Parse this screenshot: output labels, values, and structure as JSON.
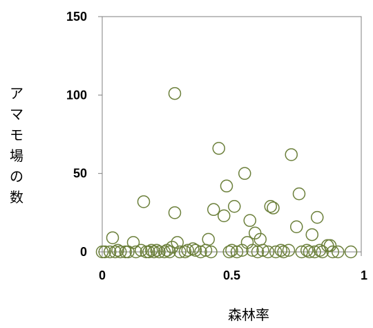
{
  "chart_data": {
    "type": "scatter",
    "title": "",
    "xlabel": "森林率",
    "ylabel": "アマモ場の数",
    "xlim": [
      0,
      1
    ],
    "ylim": [
      0,
      150
    ],
    "xticks": [
      0,
      0.5,
      1
    ],
    "xtick_labels": [
      "0",
      "0.5",
      "1"
    ],
    "yticks": [
      0,
      50,
      100,
      150
    ],
    "ytick_labels": [
      "0",
      "50",
      "100",
      "150"
    ],
    "grid": false,
    "legend": "none",
    "marker": {
      "shape": "open-circle",
      "color": "#6b7f3a"
    },
    "points": [
      {
        "x": 0.0,
        "y": 0
      },
      {
        "x": 0.01,
        "y": 0
      },
      {
        "x": 0.03,
        "y": 0
      },
      {
        "x": 0.04,
        "y": 9
      },
      {
        "x": 0.05,
        "y": 0
      },
      {
        "x": 0.06,
        "y": 1
      },
      {
        "x": 0.07,
        "y": 0
      },
      {
        "x": 0.09,
        "y": 0
      },
      {
        "x": 0.1,
        "y": 0
      },
      {
        "x": 0.12,
        "y": 6
      },
      {
        "x": 0.13,
        "y": 0
      },
      {
        "x": 0.15,
        "y": 1
      },
      {
        "x": 0.16,
        "y": 32
      },
      {
        "x": 0.17,
        "y": 0
      },
      {
        "x": 0.18,
        "y": 0
      },
      {
        "x": 0.19,
        "y": 1
      },
      {
        "x": 0.2,
        "y": 0
      },
      {
        "x": 0.21,
        "y": 1
      },
      {
        "x": 0.22,
        "y": 0
      },
      {
        "x": 0.24,
        "y": 0
      },
      {
        "x": 0.25,
        "y": 1
      },
      {
        "x": 0.26,
        "y": 0
      },
      {
        "x": 0.27,
        "y": 3
      },
      {
        "x": 0.28,
        "y": 25
      },
      {
        "x": 0.28,
        "y": 101
      },
      {
        "x": 0.29,
        "y": 6
      },
      {
        "x": 0.3,
        "y": 0
      },
      {
        "x": 0.32,
        "y": 0
      },
      {
        "x": 0.33,
        "y": 1
      },
      {
        "x": 0.35,
        "y": 2
      },
      {
        "x": 0.36,
        "y": 1
      },
      {
        "x": 0.38,
        "y": 0
      },
      {
        "x": 0.4,
        "y": 1
      },
      {
        "x": 0.41,
        "y": 8
      },
      {
        "x": 0.42,
        "y": 0
      },
      {
        "x": 0.43,
        "y": 27
      },
      {
        "x": 0.45,
        "y": 66
      },
      {
        "x": 0.47,
        "y": 23
      },
      {
        "x": 0.48,
        "y": 42
      },
      {
        "x": 0.49,
        "y": 0
      },
      {
        "x": 0.5,
        "y": 1
      },
      {
        "x": 0.51,
        "y": 29
      },
      {
        "x": 0.52,
        "y": 0
      },
      {
        "x": 0.54,
        "y": 1
      },
      {
        "x": 0.55,
        "y": 50
      },
      {
        "x": 0.56,
        "y": 6
      },
      {
        "x": 0.57,
        "y": 20
      },
      {
        "x": 0.58,
        "y": 1
      },
      {
        "x": 0.59,
        "y": 12
      },
      {
        "x": 0.6,
        "y": 0
      },
      {
        "x": 0.61,
        "y": 8
      },
      {
        "x": 0.62,
        "y": 1
      },
      {
        "x": 0.64,
        "y": 0
      },
      {
        "x": 0.65,
        "y": 29
      },
      {
        "x": 0.66,
        "y": 28
      },
      {
        "x": 0.67,
        "y": 0
      },
      {
        "x": 0.69,
        "y": 1
      },
      {
        "x": 0.7,
        "y": 0
      },
      {
        "x": 0.72,
        "y": 1
      },
      {
        "x": 0.73,
        "y": 62
      },
      {
        "x": 0.75,
        "y": 16
      },
      {
        "x": 0.76,
        "y": 37
      },
      {
        "x": 0.77,
        "y": 0
      },
      {
        "x": 0.79,
        "y": 1
      },
      {
        "x": 0.8,
        "y": 0
      },
      {
        "x": 0.81,
        "y": 11
      },
      {
        "x": 0.82,
        "y": 0
      },
      {
        "x": 0.83,
        "y": 22
      },
      {
        "x": 0.84,
        "y": 1
      },
      {
        "x": 0.85,
        "y": 0
      },
      {
        "x": 0.87,
        "y": 4
      },
      {
        "x": 0.88,
        "y": 4
      },
      {
        "x": 0.89,
        "y": 0
      },
      {
        "x": 0.91,
        "y": 0
      },
      {
        "x": 0.96,
        "y": 0
      }
    ]
  }
}
